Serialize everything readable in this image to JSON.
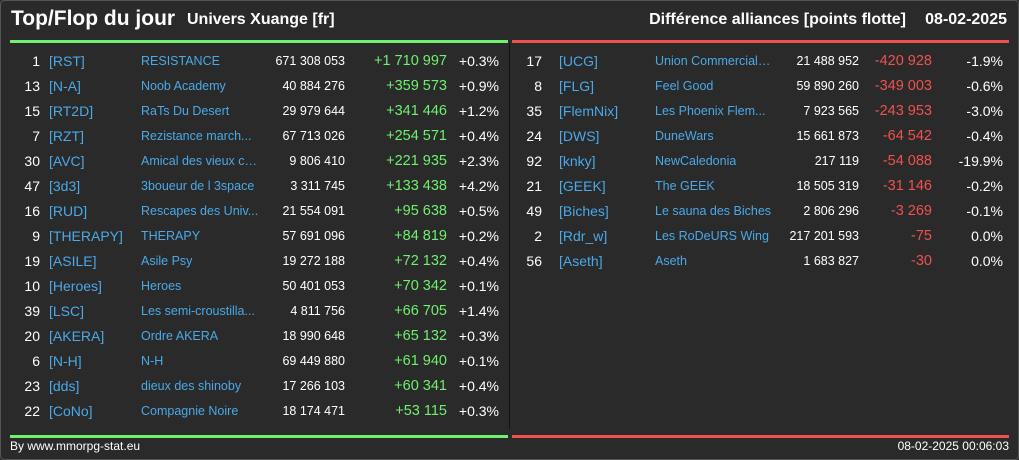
{
  "header": {
    "title": "Top/Flop du jour",
    "universe": "Univers Xuange [fr]",
    "right_title": "Différence alliances [points flotte]",
    "date": "08-02-2025"
  },
  "colors": {
    "positive": "#6ff06f",
    "negative": "#f05050",
    "link": "#4aa9e8",
    "background": "#2a2a2a"
  },
  "top": [
    {
      "rank": "1",
      "tag": "[RST]",
      "name": "RESISTANCE",
      "points": "671 308 053",
      "diff": "+1 710 997",
      "pct": "+0.3%"
    },
    {
      "rank": "13",
      "tag": "[N-A]",
      "name": "Noob Academy",
      "points": "40 884 276",
      "diff": "+359 573",
      "pct": "+0.9%"
    },
    {
      "rank": "15",
      "tag": "[RT2D]",
      "name": "RaTs Du Desert",
      "points": "29 979 644",
      "diff": "+341 446",
      "pct": "+1.2%"
    },
    {
      "rank": "7",
      "tag": "[RZT]",
      "name": "Rezistance march...",
      "points": "67 713 026",
      "diff": "+254 571",
      "pct": "+0.4%"
    },
    {
      "rank": "30",
      "tag": "[AVC]",
      "name": "Amical des vieux co...",
      "points": "9 806 410",
      "diff": "+221 935",
      "pct": "+2.3%"
    },
    {
      "rank": "47",
      "tag": "[3d3]",
      "name": "3boueur de l 3space",
      "points": "3 311 745",
      "diff": "+133 438",
      "pct": "+4.2%"
    },
    {
      "rank": "16",
      "tag": "[RUD]",
      "name": "Rescapes des Univ...",
      "points": "21 554 091",
      "diff": "+95 638",
      "pct": "+0.5%"
    },
    {
      "rank": "9",
      "tag": "[THERAPY]",
      "name": "THERAPY",
      "points": "57 691 096",
      "diff": "+84 819",
      "pct": "+0.2%"
    },
    {
      "rank": "19",
      "tag": "[ASILE]",
      "name": "Asile Psy",
      "points": "19 272 188",
      "diff": "+72 132",
      "pct": "+0.4%"
    },
    {
      "rank": "10",
      "tag": "[Heroes]",
      "name": "Heroes",
      "points": "50 401 053",
      "diff": "+70 342",
      "pct": "+0.1%"
    },
    {
      "rank": "39",
      "tag": "[LSC]",
      "name": "Les semi-croustilla...",
      "points": "4 811 756",
      "diff": "+66 705",
      "pct": "+1.4%"
    },
    {
      "rank": "20",
      "tag": "[AKERA]",
      "name": "Ordre AKERA",
      "points": "18 990 648",
      "diff": "+65 132",
      "pct": "+0.3%"
    },
    {
      "rank": "6",
      "tag": "[N-H]",
      "name": "N-H",
      "points": "69 449 880",
      "diff": "+61 940",
      "pct": "+0.1%"
    },
    {
      "rank": "23",
      "tag": "[dds]",
      "name": "dieux des shinoby",
      "points": "17 266 103",
      "diff": "+60 341",
      "pct": "+0.4%"
    },
    {
      "rank": "22",
      "tag": "[CoNo]",
      "name": "Compagnie Noire",
      "points": "18 174 471",
      "diff": "+53 115",
      "pct": "+0.3%"
    }
  ],
  "flop": [
    {
      "rank": "17",
      "tag": "[UCG]",
      "name": "Union Commerciale...",
      "points": "21 488 952",
      "diff": "-420 928",
      "pct": "-1.9%"
    },
    {
      "rank": "8",
      "tag": "[FLG]",
      "name": "Feel Good",
      "points": "59 890 260",
      "diff": "-349 003",
      "pct": "-0.6%"
    },
    {
      "rank": "35",
      "tag": "[FlemNix]",
      "name": "Les Phoenix Flem...",
      "points": "7 923 565",
      "diff": "-243 953",
      "pct": "-3.0%"
    },
    {
      "rank": "24",
      "tag": "[DWS]",
      "name": "DuneWars",
      "points": "15 661 873",
      "diff": "-64 542",
      "pct": "-0.4%"
    },
    {
      "rank": "92",
      "tag": "[knky]",
      "name": "NewCaledonia",
      "points": "217 119",
      "diff": "-54 088",
      "pct": "-19.9%"
    },
    {
      "rank": "21",
      "tag": "[GEEK]",
      "name": "The GEEK",
      "points": "18 505 319",
      "diff": "-31 146",
      "pct": "-0.2%"
    },
    {
      "rank": "49",
      "tag": "[Biches]",
      "name": "Le sauna des Biches",
      "points": "2 806 296",
      "diff": "-3 269",
      "pct": "-0.1%"
    },
    {
      "rank": "2",
      "tag": "[Rdr_w]",
      "name": "Les RoDeURS Wing",
      "points": "217 201 593",
      "diff": "-75",
      "pct": "0.0%"
    },
    {
      "rank": "56",
      "tag": "[Aseth]",
      "name": "Aseth",
      "points": "1 683 827",
      "diff": "-30",
      "pct": "0.0%"
    }
  ],
  "footer": {
    "source": "By www.mmorpg-stat.eu",
    "timestamp": "08-02-2025 00:06:03"
  }
}
